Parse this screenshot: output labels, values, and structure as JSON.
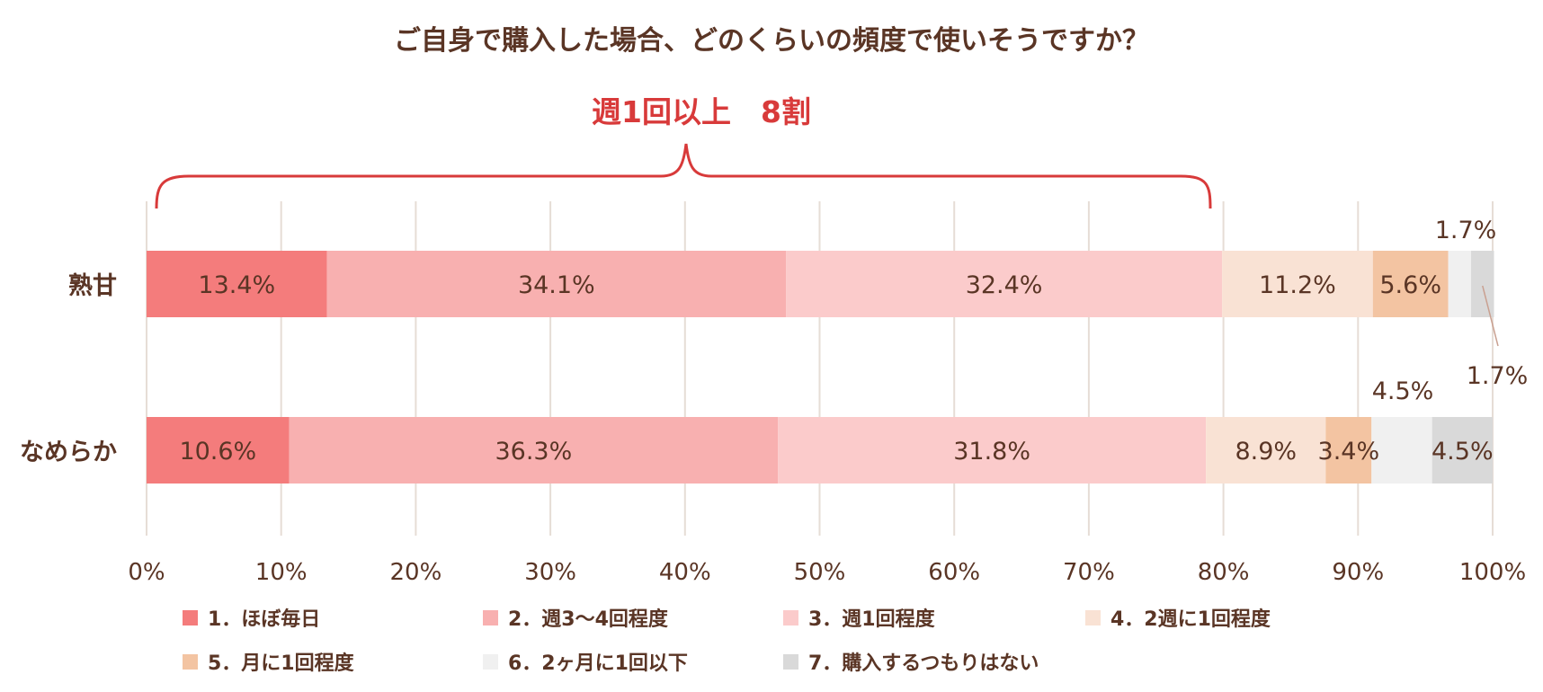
{
  "chart_data": {
    "type": "bar",
    "orientation": "horizontal",
    "stacked": true,
    "title": "ご自身で購入した場合、どのくらいの頻度で使いそうですか？",
    "annotation": "週1回以上　8割",
    "categories": [
      "熟甘",
      "なめらか"
    ],
    "series": [
      {
        "name": "1．ほぼ毎日",
        "color": "#f47c7c",
        "values": [
          13.4,
          10.6
        ],
        "labels": [
          "13.4%",
          "10.6%"
        ]
      },
      {
        "name": "2．週3～4回程度",
        "color": "#f8b0b0",
        "values": [
          34.1,
          36.3
        ],
        "labels": [
          "34.1%",
          "36.3%"
        ]
      },
      {
        "name": "3．週1回程度",
        "color": "#fbcbcb",
        "values": [
          32.4,
          31.8
        ],
        "labels": [
          "32.4%",
          "31.8%"
        ]
      },
      {
        "name": "4．2週に1回程度",
        "color": "#f9e2d4",
        "values": [
          11.2,
          8.9
        ],
        "labels": [
          "11.2%",
          "8.9%"
        ]
      },
      {
        "name": "5．月に1回程度",
        "color": "#f3c4a2",
        "values": [
          5.6,
          3.4
        ],
        "labels": [
          "5.6%",
          "3.4%"
        ]
      },
      {
        "name": "6．2ヶ月に1回以下",
        "color": "#f0f0f0",
        "values": [
          1.7,
          4.5
        ],
        "labels": [
          "1.7%",
          "4.5%"
        ]
      },
      {
        "name": "7．購入するつもりはない",
        "color": "#d9d9d9",
        "values": [
          1.7,
          4.5
        ],
        "labels": [
          "1.7%",
          "4.5%"
        ]
      }
    ],
    "xlim": [
      0,
      100
    ],
    "xticks": [
      "0%",
      "10%",
      "20%",
      "30%",
      "40%",
      "50%",
      "60%",
      "70%",
      "80%",
      "90%",
      "100%"
    ],
    "grid": true,
    "legend_position": "bottom",
    "text_color": "#5a3525",
    "highlight_color": "#d83a3a",
    "gridline_color": "#e6ddd6"
  }
}
